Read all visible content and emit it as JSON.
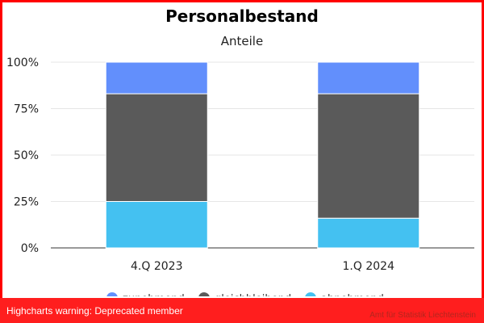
{
  "chart_data": {
    "type": "bar",
    "stacked": true,
    "title": "Personalbestand",
    "subtitle": "Anteile",
    "categories": [
      "4.Q 2023",
      "1.Q 2024"
    ],
    "y_ticks": [
      "0%",
      "25%",
      "50%",
      "75%",
      "100%"
    ],
    "ylim": [
      0,
      100
    ],
    "grid": true,
    "legend_position": "bottom",
    "series": [
      {
        "name": "abnehmend",
        "color": "#44c1f1",
        "values": [
          25,
          16
        ]
      },
      {
        "name": "gleichbleibend",
        "color": "#5a5a5a",
        "values": [
          58,
          67
        ]
      },
      {
        "name": "zunehmend",
        "color": "#628ffc",
        "values": [
          17,
          17
        ]
      }
    ],
    "legend_order": [
      "zunehmend",
      "gleichbleibend",
      "abnehmend"
    ],
    "credits": "Amt für Statistik Liechtenstein"
  },
  "warning": "Highcharts warning: Deprecated member"
}
